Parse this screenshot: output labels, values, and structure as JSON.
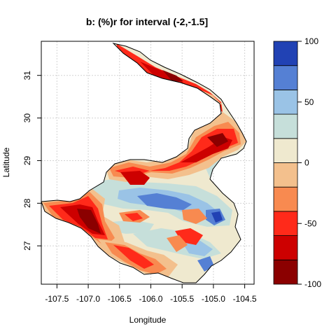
{
  "title": "b:   (%)r for interval (-2,-1.5]",
  "xlabel": "Longitude",
  "ylabel": "Latitude",
  "chart_data": {
    "type": "heatmap",
    "title": "b:   (%)r for interval (-2,-1.5]",
    "xlabel": "Longitude",
    "ylabel": "Latitude",
    "xlim": [
      -107.75,
      -104.35
    ],
    "ylim": [
      26.1,
      31.8
    ],
    "x_ticks": [
      "-107.5",
      "-107.0",
      "-106.5",
      "-106.0",
      "-105.5",
      "-105.0",
      "-104.5"
    ],
    "y_ticks": [
      "27",
      "28",
      "29",
      "30",
      "31"
    ],
    "grid": true,
    "colorbar": {
      "range": [
        -100,
        100
      ],
      "tick_labels": [
        "100",
        "50",
        "0",
        "-50",
        "-100"
      ],
      "bins": [
        {
          "from": -100,
          "to": -80,
          "color": "#8b0000"
        },
        {
          "from": -80,
          "to": -60,
          "color": "#cd0000"
        },
        {
          "from": -60,
          "to": -40,
          "color": "#ff2a1a"
        },
        {
          "from": -40,
          "to": -20,
          "color": "#f88a50"
        },
        {
          "from": -20,
          "to": 0,
          "color": "#f3c08d"
        },
        {
          "from": 0,
          "to": 20,
          "color": "#efe9cf"
        },
        {
          "from": 20,
          "to": 40,
          "color": "#c6dfda"
        },
        {
          "from": 40,
          "to": 60,
          "color": "#9ac3e6"
        },
        {
          "from": 60,
          "to": 80,
          "color": "#5580d4"
        },
        {
          "from": 80,
          "to": 100,
          "color": "#2142b4"
        }
      ]
    }
  }
}
